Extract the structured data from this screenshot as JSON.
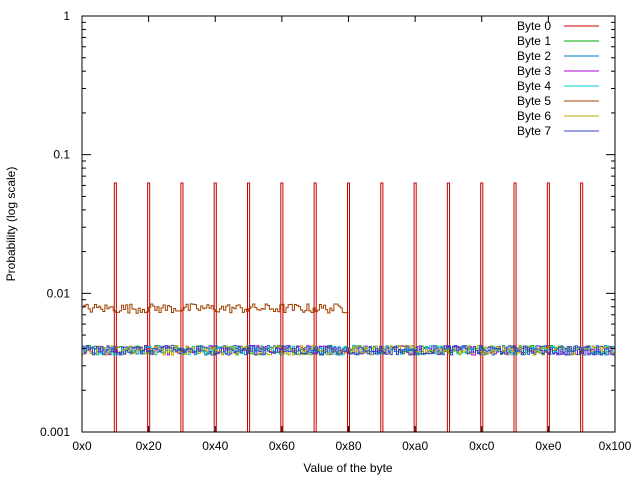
{
  "chart_data": {
    "type": "line",
    "title": "",
    "xlabel": "Value of the byte",
    "ylabel": "Probability (log scale)",
    "xlim": [
      0,
      256
    ],
    "ylim": [
      0.001,
      1
    ],
    "yscale": "log",
    "grid": false,
    "legend_placement": "top-right",
    "x_ticks": [
      {
        "value": 0,
        "label": "0x0"
      },
      {
        "value": 32,
        "label": "0x20"
      },
      {
        "value": 64,
        "label": "0x40"
      },
      {
        "value": 96,
        "label": "0x60"
      },
      {
        "value": 128,
        "label": "0x80"
      },
      {
        "value": 160,
        "label": "0xa0"
      },
      {
        "value": 192,
        "label": "0xc0"
      },
      {
        "value": 224,
        "label": "0xe0"
      },
      {
        "value": 256,
        "label": "0x100"
      }
    ],
    "y_ticks": [
      {
        "value": 0.001,
        "label": "0.001"
      },
      {
        "value": 0.01,
        "label": "0.01"
      },
      {
        "value": 0.1,
        "label": "0.1"
      },
      {
        "value": 1,
        "label": "1"
      }
    ],
    "series": [
      {
        "name": "Byte 0",
        "color": "#cc0000",
        "style": "spikes",
        "spike_positions": [
          16,
          32,
          48,
          64,
          80,
          96,
          112,
          128,
          144,
          160,
          176,
          192,
          208,
          224,
          240
        ],
        "spike_value": 0.0625
      },
      {
        "name": "Byte 1",
        "color": "#00aa00",
        "style": "noise",
        "x_range": [
          0,
          256
        ],
        "mean": 0.0039
      },
      {
        "name": "Byte 2",
        "color": "#0077cc",
        "style": "noise",
        "x_range": [
          0,
          256
        ],
        "mean": 0.0039
      },
      {
        "name": "Byte 3",
        "color": "#aa00cc",
        "style": "noise",
        "x_range": [
          0,
          256
        ],
        "mean": 0.0039
      },
      {
        "name": "Byte 4",
        "color": "#00cccc",
        "style": "noise",
        "x_range": [
          0,
          256
        ],
        "mean": 0.0039
      },
      {
        "name": "Byte 5",
        "color": "#a04000",
        "style": "noise",
        "x_range": [
          0,
          128
        ],
        "mean": 0.0078
      },
      {
        "name": "Byte 6",
        "color": "#bbaa00",
        "style": "noise",
        "x_range": [
          0,
          256
        ],
        "mean": 0.0039
      },
      {
        "name": "Byte 7",
        "color": "#3344cc",
        "style": "noise",
        "x_range": [
          0,
          256
        ],
        "mean": 0.0039
      }
    ]
  }
}
